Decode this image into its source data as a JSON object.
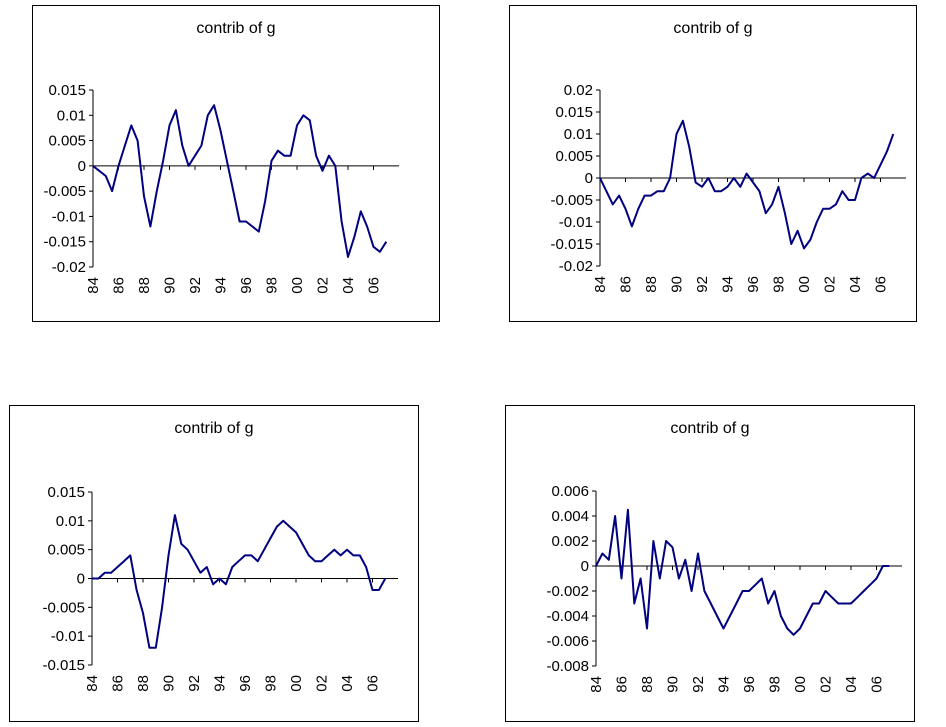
{
  "chart_data": [
    {
      "type": "line",
      "title": "contrib of g",
      "xlabel": "",
      "ylabel": "",
      "ylim": [
        -0.02,
        0.015
      ],
      "yticks": [
        0.015,
        0.01,
        0.005,
        0,
        -0.005,
        -0.01,
        -0.015,
        -0.02
      ],
      "ytick_labels": [
        "0.015",
        "0.01",
        "0.005",
        "0",
        "-0.005",
        "-0.01",
        "-0.015",
        "-0.02"
      ],
      "xlim": [
        1984,
        2008
      ],
      "xtick_labels": [
        "84",
        "86",
        "88",
        "90",
        "92",
        "94",
        "96",
        "98",
        "00",
        "02",
        "04",
        "06"
      ],
      "grid": false,
      "color": "#000080",
      "series": [
        {
          "x": [
            1984,
            1984.5,
            1985,
            1985.5,
            1986,
            1986.5,
            1987,
            1987.5,
            1988,
            1988.5,
            1989,
            1989.5,
            1990,
            1990.5,
            1991,
            1991.5,
            1992,
            1992.5,
            1993,
            1993.5,
            1994,
            1994.5,
            1995,
            1995.5,
            1996,
            1996.5,
            1997,
            1997.5,
            1998,
            1998.5,
            1999,
            1999.5,
            2000,
            2000.5,
            2001,
            2001.5,
            2002,
            2002.5,
            2003,
            2003.5,
            2004,
            2004.5,
            2005,
            2005.5,
            2006,
            2006.5,
            2007
          ],
          "y": [
            0,
            -0.001,
            -0.002,
            -0.005,
            0,
            0.004,
            0.008,
            0.005,
            -0.006,
            -0.012,
            -0.005,
            0.001,
            0.008,
            0.011,
            0.004,
            0,
            0.002,
            0.004,
            0.01,
            0.012,
            0.007,
            0.001,
            -0.005,
            -0.011,
            -0.011,
            -0.012,
            -0.013,
            -0.007,
            0.001,
            0.003,
            0.002,
            0.002,
            0.008,
            0.01,
            0.009,
            0.002,
            -0.001,
            0.002,
            0,
            -0.011,
            -0.018,
            -0.014,
            -0.009,
            -0.012,
            -0.016,
            -0.017,
            -0.015
          ]
        }
      ]
    },
    {
      "type": "line",
      "title": "contrib of g",
      "xlabel": "",
      "ylabel": "",
      "ylim": [
        -0.02,
        0.02
      ],
      "yticks": [
        0.02,
        0.015,
        0.01,
        0.005,
        0,
        -0.005,
        -0.01,
        -0.015,
        -0.02
      ],
      "ytick_labels": [
        "0.02",
        "0.015",
        "0.01",
        "0.005",
        "0",
        "-0.005",
        "-0.01",
        "-0.015",
        "-0.02"
      ],
      "xlim": [
        1984,
        2008
      ],
      "xtick_labels": [
        "84",
        "86",
        "88",
        "90",
        "92",
        "94",
        "96",
        "98",
        "00",
        "02",
        "04",
        "06"
      ],
      "grid": false,
      "color": "#000080",
      "series": [
        {
          "x": [
            1984,
            1984.5,
            1985,
            1985.5,
            1986,
            1986.5,
            1987,
            1987.5,
            1988,
            1988.5,
            1989,
            1989.5,
            1990,
            1990.5,
            1991,
            1991.5,
            1992,
            1992.5,
            1993,
            1993.5,
            1994,
            1994.5,
            1995,
            1995.5,
            1996,
            1996.5,
            1997,
            1997.5,
            1998,
            1998.5,
            1999,
            1999.5,
            2000,
            2000.5,
            2001,
            2001.5,
            2002,
            2002.5,
            2003,
            2003.5,
            2004,
            2004.5,
            2005,
            2005.5,
            2006,
            2006.5,
            2007
          ],
          "y": [
            0,
            -0.003,
            -0.006,
            -0.004,
            -0.007,
            -0.011,
            -0.007,
            -0.004,
            -0.004,
            -0.003,
            -0.003,
            0,
            0.01,
            0.013,
            0.007,
            -0.001,
            -0.002,
            0,
            -0.003,
            -0.003,
            -0.002,
            0,
            -0.002,
            0.001,
            -0.001,
            -0.003,
            -0.008,
            -0.006,
            -0.002,
            -0.008,
            -0.015,
            -0.012,
            -0.016,
            -0.014,
            -0.01,
            -0.007,
            -0.007,
            -0.006,
            -0.003,
            -0.005,
            -0.005,
            0,
            0.001,
            0,
            0.003,
            0.006,
            0.01
          ]
        }
      ]
    },
    {
      "type": "line",
      "title": "contrib of g",
      "xlabel": "",
      "ylabel": "",
      "ylim": [
        -0.015,
        0.015
      ],
      "yticks": [
        0.015,
        0.01,
        0.005,
        0,
        -0.005,
        -0.01,
        -0.015
      ],
      "ytick_labels": [
        "0.015",
        "0.01",
        "0.005",
        "0",
        "-0.005",
        "-0.01",
        "-0.015"
      ],
      "xlim": [
        1984,
        2008
      ],
      "xtick_labels": [
        "84",
        "86",
        "88",
        "90",
        "92",
        "94",
        "96",
        "98",
        "00",
        "02",
        "04",
        "06"
      ],
      "grid": false,
      "color": "#000080",
      "series": [
        {
          "x": [
            1984,
            1984.5,
            1985,
            1985.5,
            1986,
            1986.5,
            1987,
            1987.5,
            1988,
            1988.5,
            1989,
            1989.5,
            1990,
            1990.5,
            1991,
            1991.5,
            1992,
            1992.5,
            1993,
            1993.5,
            1994,
            1994.5,
            1995,
            1995.5,
            1996,
            1996.5,
            1997,
            1997.5,
            1998,
            1998.5,
            1999,
            1999.5,
            2000,
            2000.5,
            2001,
            2001.5,
            2002,
            2002.5,
            2003,
            2003.5,
            2004,
            2004.5,
            2005,
            2005.5,
            2006,
            2006.5,
            2007
          ],
          "y": [
            0,
            0,
            0.001,
            0.001,
            0.002,
            0.003,
            0.004,
            -0.002,
            -0.006,
            -0.012,
            -0.012,
            -0.005,
            0.004,
            0.011,
            0.006,
            0.005,
            0.003,
            0.001,
            0.002,
            -0.001,
            0,
            -0.001,
            0.002,
            0.003,
            0.004,
            0.004,
            0.003,
            0.005,
            0.007,
            0.009,
            0.01,
            0.009,
            0.008,
            0.006,
            0.004,
            0.003,
            0.003,
            0.004,
            0.005,
            0.004,
            0.005,
            0.004,
            0.004,
            0.002,
            -0.002,
            -0.002,
            0
          ]
        }
      ]
    },
    {
      "type": "line",
      "title": "contrib of g",
      "xlabel": "",
      "ylabel": "",
      "ylim": [
        -0.008,
        0.006
      ],
      "yticks": [
        0.006,
        0.004,
        0.002,
        0,
        -0.002,
        -0.004,
        -0.006,
        -0.008
      ],
      "ytick_labels": [
        "0.006",
        "0.004",
        "0.002",
        "0",
        "-0.002",
        "-0.004",
        "-0.006",
        "-0.008"
      ],
      "xlim": [
        1984,
        2008
      ],
      "xtick_labels": [
        "84",
        "86",
        "88",
        "90",
        "92",
        "94",
        "96",
        "98",
        "00",
        "02",
        "04",
        "06"
      ],
      "grid": false,
      "color": "#000080",
      "series": [
        {
          "x": [
            1984,
            1984.5,
            1985,
            1985.5,
            1986,
            1986.5,
            1987,
            1987.5,
            1988,
            1988.5,
            1989,
            1989.5,
            1990,
            1990.5,
            1991,
            1991.5,
            1992,
            1992.5,
            1993,
            1993.5,
            1994,
            1994.5,
            1995,
            1995.5,
            1996,
            1996.5,
            1997,
            1997.5,
            1998,
            1998.5,
            1999,
            1999.5,
            2000,
            2000.5,
            2001,
            2001.5,
            2002,
            2002.5,
            2003,
            2003.5,
            2004,
            2004.5,
            2005,
            2005.5,
            2006,
            2006.5,
            2007
          ],
          "y": [
            0,
            0.001,
            0.0005,
            0.004,
            -0.001,
            0.0045,
            -0.003,
            -0.001,
            -0.005,
            0.002,
            -0.001,
            0.002,
            0.0015,
            -0.001,
            0.0005,
            -0.002,
            0.001,
            -0.002,
            -0.003,
            -0.004,
            -0.005,
            -0.004,
            -0.003,
            -0.002,
            -0.002,
            -0.0015,
            -0.001,
            -0.003,
            -0.002,
            -0.004,
            -0.005,
            -0.0055,
            -0.005,
            -0.004,
            -0.003,
            -0.003,
            -0.002,
            -0.0025,
            -0.003,
            -0.003,
            -0.003,
            -0.0025,
            -0.002,
            -0.0015,
            -0.001,
            0,
            0
          ]
        }
      ]
    }
  ]
}
